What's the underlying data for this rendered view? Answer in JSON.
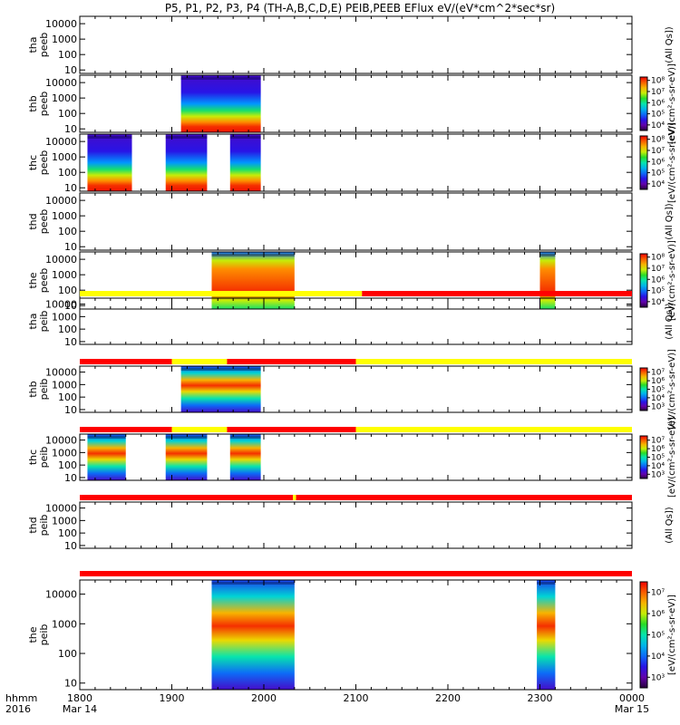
{
  "chart_data": {
    "type": "heatmap",
    "title": "P5, P1, P2, P3, P4 (TH-A,B,C,D,E) PEIB,PEEB EFlux eV/(eV*cm^2*sec*sr)",
    "x_ticks": [
      {
        "label": "1800",
        "sub": "Mar 14",
        "t": 0
      },
      {
        "label": "1900",
        "sub": "",
        "t": 60
      },
      {
        "label": "2000",
        "sub": "",
        "t": 120
      },
      {
        "label": "2100",
        "sub": "",
        "t": 180
      },
      {
        "label": "2200",
        "sub": "",
        "t": 240
      },
      {
        "label": "2300",
        "sub": "",
        "t": 300
      },
      {
        "label": "0000",
        "sub": "Mar 15",
        "t": 360
      }
    ],
    "x_caption": "hhmm",
    "x_caption2": "2016",
    "xlim": [
      0,
      360
    ],
    "y_scale": "log",
    "ylim": [
      6,
      30000
    ],
    "y_ticks": [
      "10",
      "100",
      "1000",
      "10000"
    ],
    "panels": [
      {
        "id": "tha_peeb",
        "label": [
          "tha",
          "peeb"
        ],
        "unit_label": "(All Qs])",
        "colorbar": null,
        "blocks": [],
        "kind": "electron-dc"
      },
      {
        "id": "thb_peeb",
        "label": [
          "thb",
          "peeb"
        ],
        "unit_label": "[eV/(cm^2-s-sr-eV)]",
        "colorbar": {
          "ticks": [
            "10^4",
            "10^5",
            "10^6",
            "10^7",
            "10^8"
          ],
          "min_exp": 3.5,
          "max_exp": 8.3
        },
        "blocks": [
          [
            66,
            118
          ]
        ],
        "kind": "electron-dc"
      },
      {
        "id": "thc_peeb",
        "label": [
          "thc",
          "peeb"
        ],
        "unit_label": "[eV/(cm^2-s-sr-eV)]",
        "colorbar": {
          "ticks": [
            "10^4",
            "10^5",
            "10^6",
            "10^7",
            "10^8"
          ],
          "min_exp": 3.5,
          "max_exp": 8.3
        },
        "blocks": [
          [
            5,
            34
          ],
          [
            56,
            83
          ],
          [
            98,
            118
          ]
        ],
        "kind": "electron-dc"
      },
      {
        "id": "thd_peeb",
        "label": [
          "thd",
          "peeb"
        ],
        "unit_label": "(All Qs])",
        "colorbar": null,
        "blocks": [],
        "kind": "electron-dc"
      },
      {
        "id": "the_peeb",
        "label": [
          "the",
          "peeb"
        ],
        "unit_label": "[eV/(cm^2-s-sr-eV)]",
        "colorbar": {
          "ticks": [
            "10^4",
            "10^5",
            "10^6",
            "10^7",
            "10^8"
          ],
          "min_exp": 3.5,
          "max_exp": 8.3
        },
        "blocks": [
          [
            86,
            140
          ],
          [
            300,
            310
          ]
        ],
        "kind": "electron-hi"
      },
      {
        "id": "tha_peib",
        "label": [
          "tha",
          "peib"
        ],
        "unit_label": "(All Qs])",
        "colorbar": null,
        "blocks": [],
        "kind": "ion",
        "mode_bar": [
          [
            "#ffff00",
            0,
            184
          ],
          [
            "#ff0000",
            184,
            360
          ]
        ]
      },
      {
        "id": "thb_peib",
        "label": [
          "thb",
          "peib"
        ],
        "unit_label": "[eV/(cm^2-s-sr-eV)]",
        "colorbar": {
          "ticks": [
            "10^3",
            "10^4",
            "10^5",
            "10^6",
            "10^7"
          ],
          "min_exp": 2.5,
          "max_exp": 7.5
        },
        "blocks": [
          [
            66,
            118
          ]
        ],
        "kind": "ion",
        "mode_bar": [
          [
            "#ff0000",
            0,
            60
          ],
          [
            "#ffff00",
            60,
            96
          ],
          [
            "#ff0000",
            96,
            180
          ],
          [
            "#ffff00",
            180,
            360
          ]
        ]
      },
      {
        "id": "thc_peib",
        "label": [
          "thc",
          "peib"
        ],
        "unit_label": "[eV/(cm^2-s-sr-eV)]",
        "colorbar": {
          "ticks": [
            "10^3",
            "10^4",
            "10^5",
            "10^6",
            "10^7"
          ],
          "min_exp": 2.5,
          "max_exp": 7.5
        },
        "blocks": [
          [
            5,
            30
          ],
          [
            56,
            83
          ],
          [
            98,
            118
          ]
        ],
        "kind": "ion",
        "mode_bar": [
          [
            "#ff0000",
            0,
            60
          ],
          [
            "#ffff00",
            60,
            96
          ],
          [
            "#ff0000",
            96,
            180
          ],
          [
            "#ffff00",
            180,
            360
          ]
        ]
      },
      {
        "id": "thd_peib",
        "label": [
          "thd",
          "peib"
        ],
        "unit_label": "(All Qs])",
        "colorbar": null,
        "blocks": [],
        "kind": "ion",
        "mode_bar": [
          [
            "#ff0000",
            0,
            139
          ],
          [
            "#ffff00",
            139,
            141
          ],
          [
            "#ff0000",
            141,
            360
          ]
        ]
      },
      {
        "id": "the_peib",
        "label": [
          "the",
          "peib"
        ],
        "unit_label": "[eV/(cm^2-s-sr-eV)]",
        "colorbar": {
          "ticks": [
            "10^3",
            "10^4",
            "10^5",
            "10^6",
            "10^7"
          ],
          "min_exp": 2.5,
          "max_exp": 7.5
        },
        "blocks": [
          [
            86,
            140
          ],
          [
            298,
            310
          ]
        ],
        "kind": "ion",
        "mode_bar": [
          [
            "#ff0000",
            0,
            360
          ]
        ]
      }
    ]
  }
}
